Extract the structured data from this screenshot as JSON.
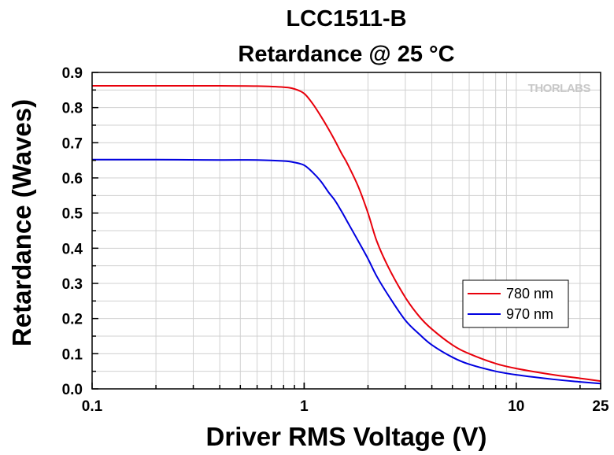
{
  "chart_data": {
    "type": "line",
    "title": "LCC1511-B",
    "subtitle": "Retardance @ 25 °C",
    "xlabel": "Driver RMS Voltage (V)",
    "ylabel": "Retardance (Waves)",
    "xscale": "log",
    "xlim": [
      0.1,
      25
    ],
    "ylim": [
      0.0,
      0.9
    ],
    "x_ticks": [
      0.1,
      1,
      10,
      25
    ],
    "x_tick_labels": [
      "0.1",
      "1",
      "10",
      "25"
    ],
    "y_ticks": [
      0.0,
      0.1,
      0.2,
      0.3,
      0.4,
      0.5,
      0.6,
      0.7,
      0.8,
      0.9
    ],
    "y_tick_labels": [
      "0.0",
      "0.1",
      "0.2",
      "0.3",
      "0.4",
      "0.5",
      "0.6",
      "0.7",
      "0.8",
      "0.9"
    ],
    "grid": true,
    "legend_position": "lower-right",
    "watermark": "THORLABS",
    "series": [
      {
        "name": "780 nm",
        "color": "#e8000b",
        "x": [
          0.1,
          0.2,
          0.4,
          0.6,
          0.8,
          0.9,
          1.0,
          1.1,
          1.2,
          1.3,
          1.4,
          1.5,
          1.6,
          1.8,
          2.0,
          2.2,
          2.5,
          3.0,
          3.5,
          4.0,
          5.0,
          6.0,
          8.0,
          10.0,
          15.0,
          20.0,
          25.0
        ],
        "y": [
          0.862,
          0.862,
          0.862,
          0.861,
          0.858,
          0.853,
          0.84,
          0.81,
          0.775,
          0.74,
          0.705,
          0.67,
          0.64,
          0.575,
          0.5,
          0.42,
          0.345,
          0.26,
          0.205,
          0.17,
          0.125,
          0.1,
          0.072,
          0.058,
          0.04,
          0.03,
          0.022
        ]
      },
      {
        "name": "970 nm",
        "color": "#0000e0",
        "x": [
          0.1,
          0.2,
          0.4,
          0.6,
          0.8,
          0.9,
          1.0,
          1.1,
          1.2,
          1.3,
          1.4,
          1.5,
          1.6,
          1.8,
          2.0,
          2.2,
          2.5,
          3.0,
          3.5,
          4.0,
          5.0,
          6.0,
          8.0,
          10.0,
          15.0,
          20.0,
          25.0
        ],
        "y": [
          0.652,
          0.652,
          0.651,
          0.651,
          0.648,
          0.644,
          0.636,
          0.615,
          0.59,
          0.56,
          0.535,
          0.505,
          0.475,
          0.42,
          0.37,
          0.32,
          0.265,
          0.195,
          0.155,
          0.125,
          0.09,
          0.07,
          0.05,
          0.04,
          0.027,
          0.02,
          0.015
        ]
      }
    ]
  }
}
